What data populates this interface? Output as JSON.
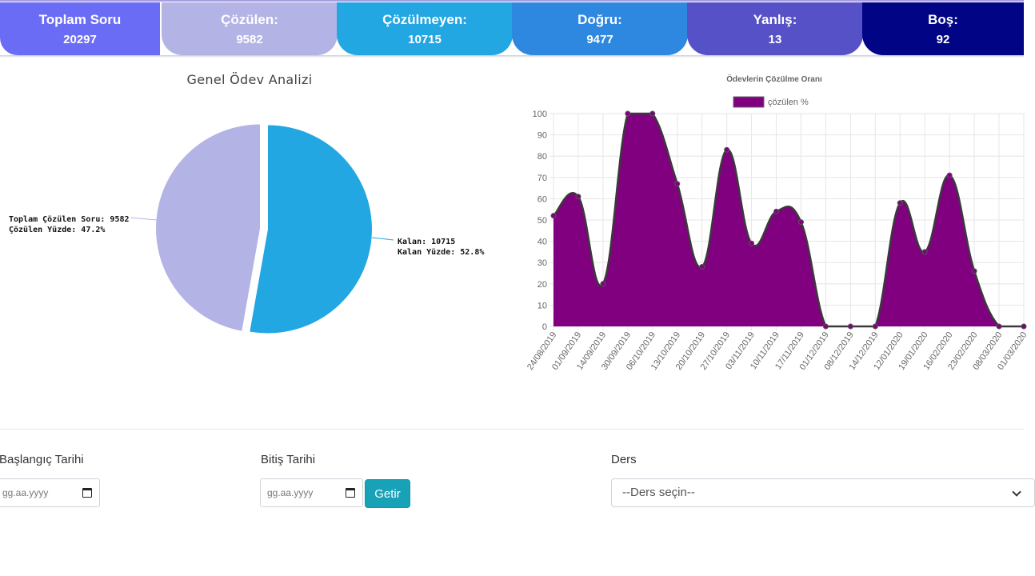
{
  "stats": [
    {
      "label": "Toplam Soru",
      "value": "20297",
      "color": "#6a6cf6"
    },
    {
      "label": "Çözülen:",
      "value": "9582",
      "color": "#b4b3e6"
    },
    {
      "label": "Çözülmeyen:",
      "value": "10715",
      "color": "#22a7e2"
    },
    {
      "label": "Doğru:",
      "value": "9477",
      "color": "#2f88e0"
    },
    {
      "label": "Yanlış:",
      "value": "13",
      "color": "#5651c6"
    },
    {
      "label": "Boş:",
      "value": "92",
      "color": "#020486"
    }
  ],
  "pie": {
    "title": "Genel Ödev Analizi",
    "solved_label_1": "Toplam Çözülen Soru: 9582",
    "solved_label_2": "Çözülen Yüzde: 47.2%",
    "remaining_label_1": "Kalan: 10715",
    "remaining_label_2": "Kalan Yüzde: 52.8%",
    "colors": {
      "solved": "#b4b3e6",
      "remaining": "#22a7e2"
    }
  },
  "chart_data": {
    "type": "area",
    "title": "Ödevlerin Çözülme Oranı",
    "xlabel": "",
    "ylabel": "",
    "ylim": [
      0,
      100
    ],
    "yticks": [
      0,
      10,
      20,
      30,
      40,
      50,
      60,
      70,
      80,
      90,
      100
    ],
    "grid": true,
    "legend": "top-center",
    "x": [
      "24/08/2019",
      "01/09/2019",
      "14/09/2019",
      "30/09/2019",
      "06/10/2019",
      "13/10/2019",
      "20/10/2019",
      "27/10/2019",
      "03/11/2019",
      "10/11/2019",
      "17/11/2019",
      "01/12/2019",
      "08/12/2019",
      "14/12/2019",
      "12/01/2020",
      "19/01/2020",
      "16/02/2020",
      "23/02/2020",
      "08/03/2020",
      "01/03/2020"
    ],
    "series": [
      {
        "name": "çözülen %",
        "color": "#800080",
        "values": [
          52,
          61,
          20,
          100,
          100,
          67,
          28,
          83,
          39,
          54,
          49,
          0,
          0,
          0,
          58,
          35,
          71,
          26,
          0,
          0
        ]
      }
    ]
  },
  "form": {
    "start_label": "Başlangıç Tarihi",
    "end_label": "Bitiş Tarihi",
    "date_placeholder": "gg.aa.yyyy",
    "submit_label": "Getir",
    "course_label": "Ders",
    "course_selected": "--Ders seçin--"
  }
}
